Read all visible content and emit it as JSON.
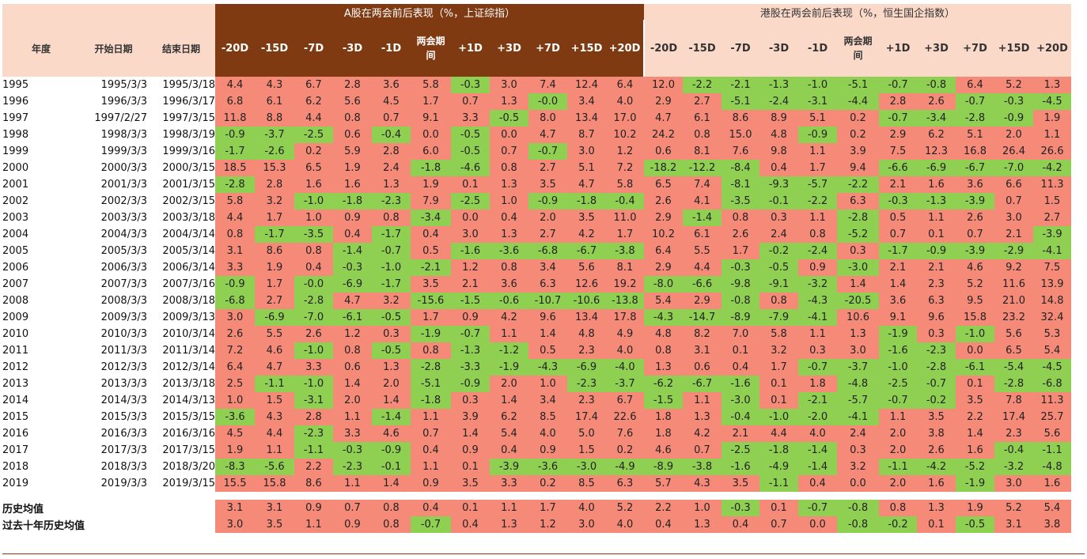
{
  "chart_data": {
    "type": "table",
    "header_a": "A股在两会前后表现（%，上证综指）",
    "header_h": "港股在两会前后表现（%，恒生国企指数）",
    "left_headers": [
      "年度",
      "开始日期",
      "结束日期"
    ],
    "columns": [
      "-20D",
      "-15D",
      "-7D",
      "-3D",
      "-1D",
      "两会期间",
      "+1D",
      "+3D",
      "+7D",
      "+15D",
      "+20D"
    ],
    "rows": [
      {
        "year": "1995",
        "start": "1995/3/3",
        "end": "1995/3/18",
        "a": [
          4.4,
          4.3,
          6.7,
          2.8,
          3.6,
          5.8,
          -0.3,
          3.0,
          7.4,
          12.4,
          6.4
        ],
        "h": [
          12.0,
          -2.2,
          -2.1,
          -1.3,
          -1.0,
          -5.1,
          -0.7,
          -0.8,
          6.4,
          5.2,
          1.3
        ]
      },
      {
        "year": "1996",
        "start": "1996/3/3",
        "end": "1996/3/17",
        "a": [
          6.8,
          6.1,
          6.2,
          5.6,
          4.5,
          1.7,
          0.7,
          1.3,
          -0.0,
          3.4,
          4.0
        ],
        "h": [
          2.9,
          2.7,
          -5.1,
          -2.4,
          -3.1,
          -4.4,
          2.8,
          2.6,
          -0.7,
          -0.3,
          -4.5
        ]
      },
      {
        "year": "1997",
        "start": "1997/2/27",
        "end": "1997/3/15",
        "a": [
          11.8,
          8.8,
          4.4,
          0.8,
          0.7,
          9.1,
          3.3,
          -0.5,
          8.0,
          13.4,
          17.0
        ],
        "h": [
          4.7,
          6.1,
          8.6,
          8.9,
          5.1,
          0.2,
          -0.7,
          -3.4,
          -2.8,
          -0.9,
          1.9
        ]
      },
      {
        "year": "1998",
        "start": "1998/3/3",
        "end": "1998/3/19",
        "a": [
          -0.9,
          -3.7,
          -2.5,
          0.6,
          -0.4,
          0.0,
          -0.5,
          0.0,
          4.7,
          8.7,
          10.2
        ],
        "h": [
          24.2,
          0.8,
          15.0,
          4.8,
          -0.9,
          0.2,
          2.9,
          6.2,
          5.1,
          2.0,
          1.1
        ]
      },
      {
        "year": "1999",
        "start": "1999/3/3",
        "end": "1999/3/16",
        "a": [
          -1.7,
          -2.6,
          0.2,
          5.9,
          2.8,
          6.0,
          -0.5,
          0.7,
          -0.7,
          3.0,
          1.2
        ],
        "h": [
          0.6,
          8.1,
          7.6,
          9.8,
          1.1,
          3.9,
          7.5,
          12.3,
          16.8,
          26.4,
          26.6
        ]
      },
      {
        "year": "2000",
        "start": "2000/3/3",
        "end": "2000/3/15",
        "a": [
          18.5,
          15.3,
          6.5,
          1.9,
          2.4,
          -1.8,
          -4.6,
          0.8,
          2.7,
          5.1,
          7.2
        ],
        "h": [
          -18.2,
          -12.2,
          -8.4,
          0.4,
          1.7,
          9.4,
          -6.6,
          -6.9,
          -6.7,
          -7.0,
          -4.2
        ]
      },
      {
        "year": "2001",
        "start": "2001/3/3",
        "end": "2001/3/15",
        "a": [
          -2.8,
          2.8,
          1.6,
          1.6,
          1.3,
          1.9,
          0.1,
          1.3,
          3.5,
          4.7,
          5.8
        ],
        "h": [
          6.5,
          7.4,
          -8.1,
          -9.3,
          -5.7,
          -2.2,
          2.1,
          1.6,
          3.6,
          6.6,
          11.3
        ]
      },
      {
        "year": "2002",
        "start": "2002/3/3",
        "end": "2002/3/15",
        "a": [
          5.8,
          3.2,
          -1.0,
          -1.8,
          -2.3,
          7.9,
          -2.5,
          1.0,
          -0.9,
          -1.8,
          -0.4
        ],
        "h": [
          2.6,
          4.1,
          -3.5,
          -0.1,
          -2.2,
          6.3,
          -0.3,
          -1.3,
          -3.9,
          0.7,
          1.5
        ]
      },
      {
        "year": "2003",
        "start": "2003/3/3",
        "end": "2003/3/18",
        "a": [
          4.4,
          1.7,
          1.0,
          0.9,
          0.8,
          -3.4,
          0.0,
          0.4,
          2.0,
          3.5,
          11.0
        ],
        "h": [
          2.9,
          -1.4,
          0.8,
          0.3,
          1.1,
          -2.8,
          0.5,
          1.1,
          2.6,
          3.0,
          2.7
        ]
      },
      {
        "year": "2004",
        "start": "2004/3/3",
        "end": "2004/3/14",
        "a": [
          0.8,
          -1.7,
          -3.5,
          0.4,
          -1.7,
          0.4,
          3.0,
          1.3,
          2.7,
          4.2,
          1.7
        ],
        "h": [
          10.2,
          6.1,
          2.6,
          2.4,
          0.8,
          -5.2,
          0.7,
          0.1,
          0.7,
          2.1,
          -3.9
        ]
      },
      {
        "year": "2005",
        "start": "2005/3/3",
        "end": "2005/3/14",
        "a": [
          3.1,
          8.6,
          0.8,
          -1.4,
          -0.7,
          0.5,
          -1.6,
          -3.6,
          -6.8,
          -6.7,
          -3.8
        ],
        "h": [
          6.4,
          5.5,
          1.7,
          -0.2,
          -2.4,
          0.3,
          -1.7,
          -0.9,
          -3.9,
          -2.9,
          -4.1
        ]
      },
      {
        "year": "2006",
        "start": "2006/3/3",
        "end": "2006/3/14",
        "a": [
          3.3,
          1.9,
          0.4,
          -0.3,
          -1.0,
          -2.1,
          1.2,
          0.8,
          3.4,
          5.6,
          8.1
        ],
        "h": [
          2.9,
          4.4,
          -0.3,
          -0.5,
          0.9,
          -3.0,
          2.1,
          2.1,
          4.6,
          9.2,
          7.5
        ]
      },
      {
        "year": "2007",
        "start": "2007/3/3",
        "end": "2007/3/16",
        "a": [
          -0.9,
          1.7,
          -0.0,
          -6.9,
          -1.7,
          3.5,
          2.1,
          3.6,
          6.3,
          12.6,
          19.2
        ],
        "h": [
          -8.0,
          -6.6,
          -9.8,
          -9.1,
          -3.2,
          1.4,
          1.4,
          2.3,
          5.2,
          11.6,
          13.9
        ]
      },
      {
        "year": "2008",
        "start": "2008/3/3",
        "end": "2008/3/18",
        "a": [
          -6.8,
          2.7,
          -2.8,
          4.7,
          3.2,
          -15.6,
          -1.5,
          -0.6,
          -10.7,
          -10.6,
          -13.8
        ],
        "h": [
          5.4,
          2.9,
          -0.8,
          0.8,
          -4.3,
          -20.5,
          3.6,
          6.3,
          9.5,
          21.0,
          14.8
        ]
      },
      {
        "year": "2009",
        "start": "2009/3/3",
        "end": "2009/3/13",
        "a": [
          3.0,
          -6.9,
          -7.0,
          -6.1,
          -0.5,
          1.7,
          0.9,
          4.2,
          9.6,
          13.4,
          17.8
        ],
        "h": [
          -4.3,
          -14.7,
          -8.9,
          -7.9,
          -4.1,
          10.6,
          9.1,
          9.6,
          15.8,
          23.2,
          32.4
        ]
      },
      {
        "year": "2010",
        "start": "2010/3/3",
        "end": "2010/3/14",
        "a": [
          2.6,
          5.5,
          2.6,
          1.2,
          0.3,
          -1.9,
          -0.7,
          1.1,
          1.4,
          4.8,
          4.9
        ],
        "h": [
          4.8,
          8.2,
          7.0,
          5.8,
          1.1,
          1.3,
          -1.9,
          0.3,
          -1.0,
          5.6,
          5.3
        ]
      },
      {
        "year": "2011",
        "start": "2011/3/3",
        "end": "2011/3/14",
        "a": [
          7.2,
          4.6,
          -1.0,
          0.8,
          -0.5,
          0.8,
          -1.3,
          -1.2,
          0.5,
          2.3,
          4.0
        ],
        "h": [
          0.8,
          3.1,
          0.1,
          3.2,
          0.3,
          3.0,
          -1.6,
          -2.3,
          0.0,
          6.5,
          5.4
        ]
      },
      {
        "year": "2012",
        "start": "2012/3/3",
        "end": "2012/3/14",
        "a": [
          6.4,
          4.7,
          3.3,
          0.6,
          1.3,
          -2.8,
          -3.3,
          -1.9,
          -4.3,
          -6.9,
          -4.0
        ],
        "h": [
          1.3,
          0.6,
          0.4,
          1.7,
          -0.7,
          -3.7,
          -1.0,
          -2.8,
          -6.1,
          -5.4,
          -4.5
        ]
      },
      {
        "year": "2013",
        "start": "2013/3/3",
        "end": "2013/3/18",
        "a": [
          2.5,
          -1.1,
          -1.0,
          1.4,
          2.0,
          -5.1,
          -0.9,
          2.0,
          1.0,
          -2.3,
          -3.7
        ],
        "h": [
          -6.2,
          -6.7,
          -1.6,
          0.1,
          1.8,
          -4.8,
          -2.5,
          -0.7,
          0.1,
          -2.8,
          -6.8
        ]
      },
      {
        "year": "2014",
        "start": "2014/3/3",
        "end": "2014/3/13",
        "a": [
          1.0,
          1.5,
          -3.1,
          2.0,
          1.4,
          -1.8,
          0.3,
          1.4,
          3.4,
          2.3,
          6.7
        ],
        "h": [
          -1.5,
          1.1,
          -3.0,
          0.1,
          -2.1,
          -5.7,
          -0.7,
          -0.2,
          3.5,
          7.8,
          11.3
        ]
      },
      {
        "year": "2015",
        "start": "2015/3/3",
        "end": "2015/3/15",
        "a": [
          -3.6,
          4.3,
          2.8,
          1.1,
          -1.4,
          1.1,
          3.9,
          6.2,
          8.5,
          17.4,
          22.6
        ],
        "h": [
          1.8,
          1.3,
          -0.4,
          -1.0,
          -2.0,
          -4.1,
          1.1,
          3.5,
          2.2,
          17.4,
          25.7
        ]
      },
      {
        "year": "2016",
        "start": "2016/3/3",
        "end": "2016/3/16",
        "a": [
          4.5,
          4.4,
          -2.3,
          3.3,
          4.6,
          0.7,
          1.4,
          5.4,
          4.0,
          5.0,
          7.6
        ],
        "h": [
          1.8,
          4.2,
          2.1,
          4.4,
          4.0,
          2.4,
          2.0,
          3.8,
          1.4,
          2.3,
          5.6
        ]
      },
      {
        "year": "2017",
        "start": "2017/3/3",
        "end": "2017/3/15",
        "a": [
          1.9,
          1.1,
          -1.1,
          -0.3,
          -0.9,
          0.4,
          0.9,
          0.4,
          0.9,
          1.5,
          0.2
        ],
        "h": [
          4.6,
          0.7,
          -2.5,
          -1.8,
          -1.4,
          0.3,
          2.0,
          2.6,
          1.6,
          -0.4,
          -1.1
        ]
      },
      {
        "year": "2018",
        "start": "2018/3/3",
        "end": "2018/3/20",
        "a": [
          -8.3,
          -5.6,
          2.2,
          -2.3,
          -0.1,
          1.1,
          0.1,
          -3.9,
          -3.6,
          -3.0,
          -4.9
        ],
        "h": [
          -8.9,
          -3.8,
          -1.6,
          -4.9,
          -1.4,
          3.2,
          -1.1,
          -4.2,
          -5.2,
          -3.2,
          -4.8
        ]
      },
      {
        "year": "2019",
        "start": "2019/3/3",
        "end": "2019/3/15",
        "a": [
          15.5,
          15.8,
          8.6,
          1.1,
          1.4,
          0.9,
          3.5,
          3.3,
          0.2,
          8.5,
          6.3
        ],
        "h": [
          5.7,
          4.3,
          3.5,
          -1.1,
          0.4,
          0.0,
          2.0,
          1.6,
          -1.9,
          3.0,
          1.6
        ]
      }
    ],
    "averages": [
      {
        "label": "历史均值",
        "a": [
          3.1,
          3.1,
          0.9,
          0.7,
          0.8,
          0.4,
          0.1,
          1.1,
          1.7,
          4.0,
          5.2
        ],
        "h": [
          2.2,
          1.0,
          -0.3,
          0.1,
          -0.7,
          -0.8,
          0.8,
          1.3,
          1.9,
          5.2,
          5.4
        ]
      },
      {
        "label": "过去十年历史均值",
        "a": [
          3.0,
          3.5,
          1.1,
          0.9,
          0.8,
          -0.7,
          0.4,
          1.3,
          1.2,
          3.0,
          4.0
        ],
        "h": [
          0.4,
          1.3,
          0.4,
          0.7,
          0.0,
          -0.8,
          -0.2,
          0.1,
          -0.5,
          3.1,
          3.8
        ]
      }
    ],
    "colors": {
      "positive": "#f58a79",
      "negative": "#8fcf52",
      "header_a": "#7f3a12",
      "header_h": "#fbd9c8"
    }
  }
}
